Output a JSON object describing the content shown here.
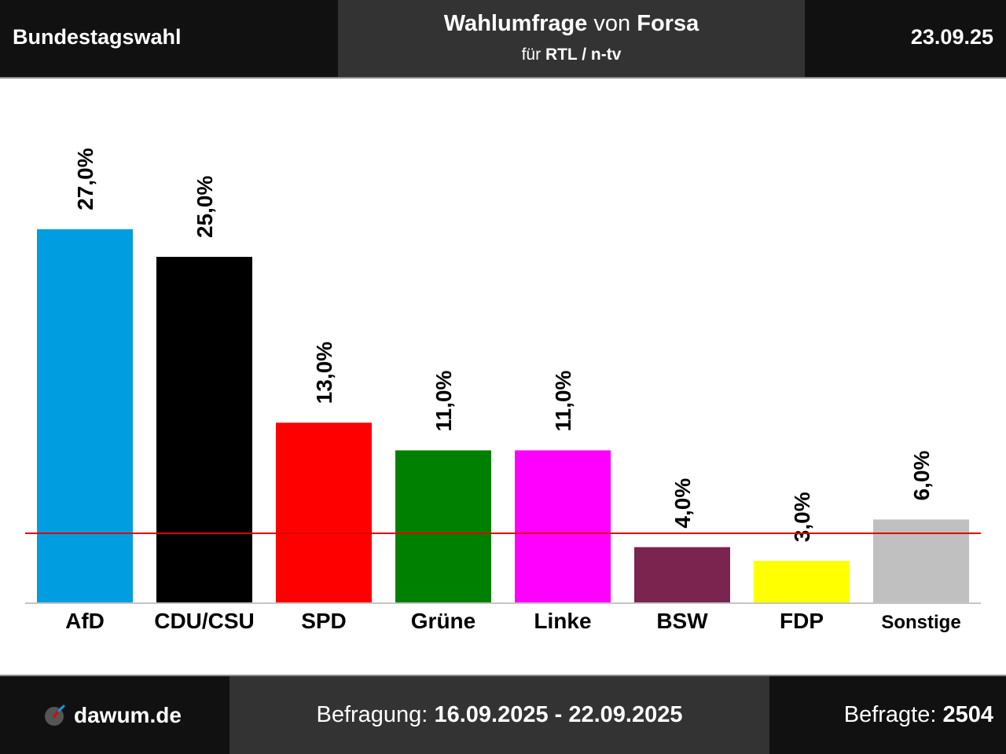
{
  "header": {
    "left_title": "Bundestagswahl",
    "title_prefix": "Wahlumfrage",
    "title_mid": " von ",
    "title_institute": "Forsa",
    "subtitle_prefix": "für ",
    "subtitle_client": "RTL / n-tv",
    "date": "23.09.25"
  },
  "footer": {
    "brand": "dawum.de",
    "survey_label": "Befragung: ",
    "survey_period": "16.09.2025 - 22.09.2025",
    "respondents_label": "Befragte: ",
    "respondents_value": "2504"
  },
  "chart_data": {
    "type": "bar",
    "categories": [
      "AfD",
      "CDU/CSU",
      "SPD",
      "Grüne",
      "Linke",
      "BSW",
      "FDP",
      "Sonstige"
    ],
    "values": [
      27.0,
      25.0,
      13.0,
      11.0,
      11.0,
      4.0,
      3.0,
      6.0
    ],
    "value_labels": [
      "27,0%",
      "25,0%",
      "13,0%",
      "11,0%",
      "11,0%",
      "4,0%",
      "3,0%",
      "6,0%"
    ],
    "colors": [
      "#009ee0",
      "#000000",
      "#ff0000",
      "#008000",
      "#ff00ff",
      "#7b2450",
      "#ffff00",
      "#c0c0c0"
    ],
    "threshold": 5.0,
    "threshold_color": "#e00000",
    "ylim": [
      0,
      30
    ]
  }
}
